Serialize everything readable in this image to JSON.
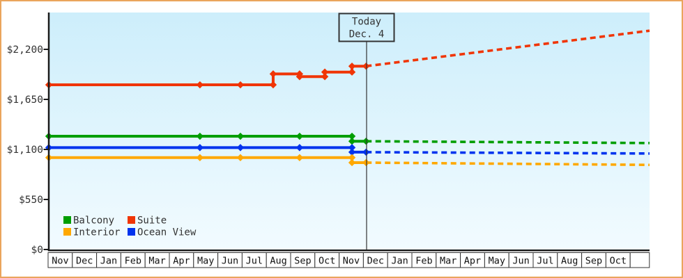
{
  "frame": {
    "border_color": "#eaa55c",
    "background_color": "#ffffff"
  },
  "today_marker": {
    "line1": "Today",
    "line2": "Dec. 4"
  },
  "legend": {
    "position": "bottom-left",
    "rows": [
      [
        {
          "label": "Balcony",
          "color": "#009e00"
        },
        {
          "label": "Suite",
          "color": "#f03505"
        }
      ],
      [
        {
          "label": "Interior",
          "color": "#ffa800"
        },
        {
          "label": "Ocean View",
          "color": "#0033ee"
        }
      ]
    ]
  },
  "chart_data": {
    "type": "line",
    "title": "",
    "description": "Cruise cabin price history by category with dashed price projection after today",
    "x_axis": {
      "months": [
        "Nov",
        "Dec",
        "Jan",
        "Feb",
        "Mar",
        "Apr",
        "May",
        "Jun",
        "Jul",
        "Aug",
        "Sep",
        "Oct",
        "Nov",
        "Dec",
        "Jan",
        "Feb",
        "Mar",
        "Apr",
        "May",
        "Jun",
        "Jul",
        "Aug",
        "Sep",
        "Oct"
      ],
      "trailing_blank_cell": true
    },
    "y_axis": {
      "ticks": [
        {
          "label": "$0",
          "value": 0
        },
        {
          "label": "$550",
          "value": 550
        },
        {
          "label": "$1,100",
          "value": 1100
        },
        {
          "label": "$1,650",
          "value": 1650
        },
        {
          "label": "$2,200",
          "value": 2200
        }
      ],
      "ylim": [
        0,
        2600
      ],
      "grid": false
    },
    "today": {
      "label": "Today",
      "date": "Dec. 4",
      "month_offset": 13.11
    },
    "plot_background": {
      "top": "#cdeefb",
      "bottom": "#f2fbff"
    },
    "series": [
      {
        "name": "Suite",
        "color": "#f03505",
        "solid_points": [
          {
            "m": 0.03,
            "date": "Nov 1",
            "v": 1810
          },
          {
            "m": 6.26,
            "date": "May 9",
            "v": 1810
          },
          {
            "m": 7.93,
            "date": "Jun 29",
            "v": 1810
          },
          {
            "m": 9.28,
            "date": "Aug 9",
            "v": 1810
          },
          {
            "m": 9.28,
            "date": "Aug 9",
            "v": 1930
          },
          {
            "m": 10.37,
            "date": "Sep 12",
            "v": 1930
          },
          {
            "m": 10.37,
            "date": "Sep 12",
            "v": 1900
          },
          {
            "m": 11.41,
            "date": "Oct 13",
            "v": 1900
          },
          {
            "m": 11.41,
            "date": "Oct 13",
            "v": 1950
          },
          {
            "m": 12.53,
            "date": "Nov 17",
            "v": 1950
          },
          {
            "m": 12.53,
            "date": "Nov 17",
            "v": 2015
          },
          {
            "m": 13.11,
            "date": "Dec 4",
            "v": 2015
          }
        ],
        "projection": [
          {
            "m": 13.11,
            "v": 2015
          },
          {
            "m": 24.8,
            "v": 2405
          }
        ]
      },
      {
        "name": "Balcony",
        "color": "#009e00",
        "solid_points": [
          {
            "m": 0.03,
            "date": "Nov 1",
            "v": 1245
          },
          {
            "m": 6.26,
            "date": "May 9",
            "v": 1245
          },
          {
            "m": 7.93,
            "date": "Jun 29",
            "v": 1245
          },
          {
            "m": 10.37,
            "date": "Sep 12",
            "v": 1245
          },
          {
            "m": 12.53,
            "date": "Nov 17",
            "v": 1245
          },
          {
            "m": 12.53,
            "date": "Nov 17",
            "v": 1190
          },
          {
            "m": 13.11,
            "date": "Dec 4",
            "v": 1190
          }
        ],
        "projection": [
          {
            "m": 13.11,
            "v": 1190
          },
          {
            "m": 24.8,
            "v": 1170
          }
        ]
      },
      {
        "name": "Ocean View",
        "color": "#0033ee",
        "solid_points": [
          {
            "m": 0.03,
            "date": "Nov 1",
            "v": 1120
          },
          {
            "m": 6.26,
            "date": "May 9",
            "v": 1120
          },
          {
            "m": 7.93,
            "date": "Jun 29",
            "v": 1120
          },
          {
            "m": 10.37,
            "date": "Sep 12",
            "v": 1120
          },
          {
            "m": 12.53,
            "date": "Nov 17",
            "v": 1120
          },
          {
            "m": 12.53,
            "date": "Nov 17",
            "v": 1070
          },
          {
            "m": 13.11,
            "date": "Dec 4",
            "v": 1070
          }
        ],
        "projection": [
          {
            "m": 13.11,
            "v": 1070
          },
          {
            "m": 24.8,
            "v": 1055
          }
        ]
      },
      {
        "name": "Interior",
        "color": "#ffa800",
        "solid_points": [
          {
            "m": 0.03,
            "date": "Nov 1",
            "v": 1010
          },
          {
            "m": 6.26,
            "date": "May 9",
            "v": 1010
          },
          {
            "m": 7.93,
            "date": "Jun 29",
            "v": 1010
          },
          {
            "m": 10.37,
            "date": "Sep 12",
            "v": 1010
          },
          {
            "m": 12.53,
            "date": "Nov 17",
            "v": 1010
          },
          {
            "m": 12.53,
            "date": "Nov 17",
            "v": 955
          },
          {
            "m": 13.11,
            "date": "Dec 4",
            "v": 955
          }
        ],
        "projection": [
          {
            "m": 13.11,
            "v": 955
          },
          {
            "m": 24.8,
            "v": 930
          }
        ]
      }
    ]
  }
}
